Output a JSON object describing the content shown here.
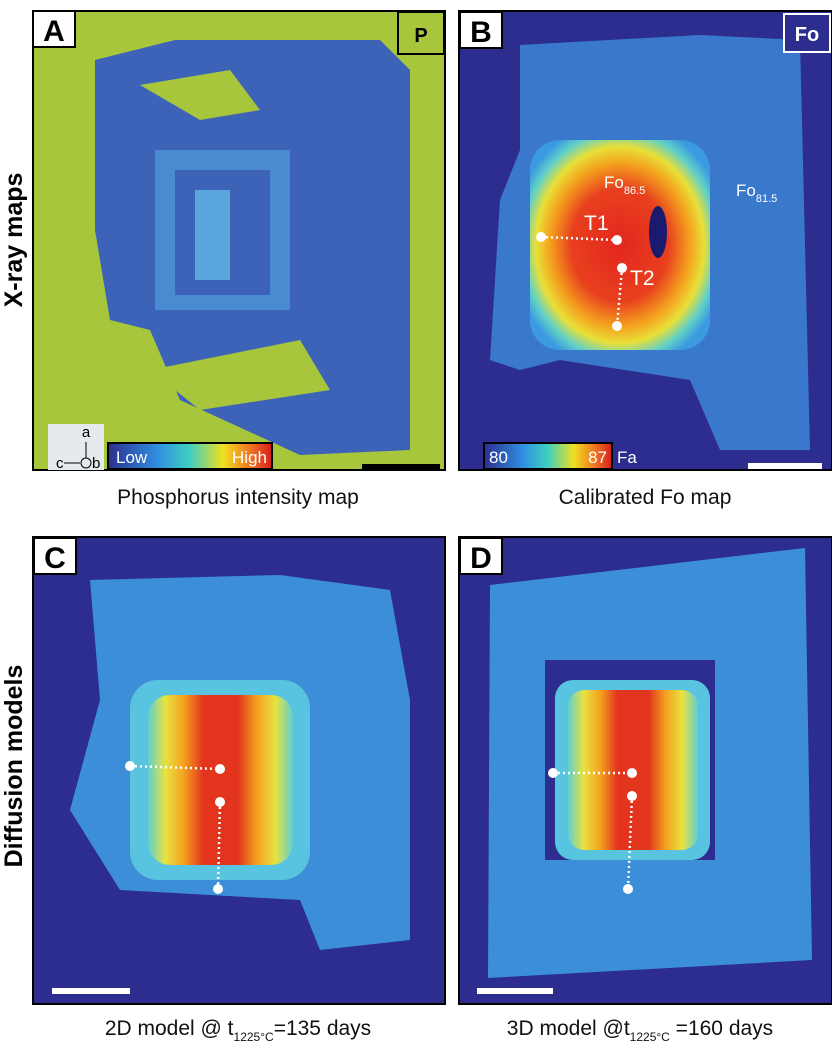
{
  "row_labels": [
    "X-ray maps",
    "Diffusion models"
  ],
  "panels": [
    {
      "letter": "A",
      "badge": "P",
      "caption": "Phosphorus intensity map",
      "colorbar": {
        "low": "Low",
        "high": "High"
      },
      "axes": {
        "a": "a",
        "b": "b",
        "c": "c"
      }
    },
    {
      "letter": "B",
      "badge": "Fo",
      "caption": "Calibrated Fo map",
      "colorbar": {
        "low": "80",
        "high": "87",
        "unit": "Fa"
      },
      "annotations": [
        {
          "base": "Fo",
          "sub": "86.5"
        },
        {
          "base": "Fo",
          "sub": "81.5"
        },
        {
          "text": "T1"
        },
        {
          "text": "T2"
        }
      ]
    },
    {
      "letter": "C",
      "caption": {
        "prefix": "2D model @ t",
        "sub": "1225°C",
        "suffix": "=135 days"
      }
    },
    {
      "letter": "D",
      "caption": {
        "prefix": "3D model @t",
        "sub": "1225°C",
        "suffix": " =160 days"
      }
    }
  ]
}
